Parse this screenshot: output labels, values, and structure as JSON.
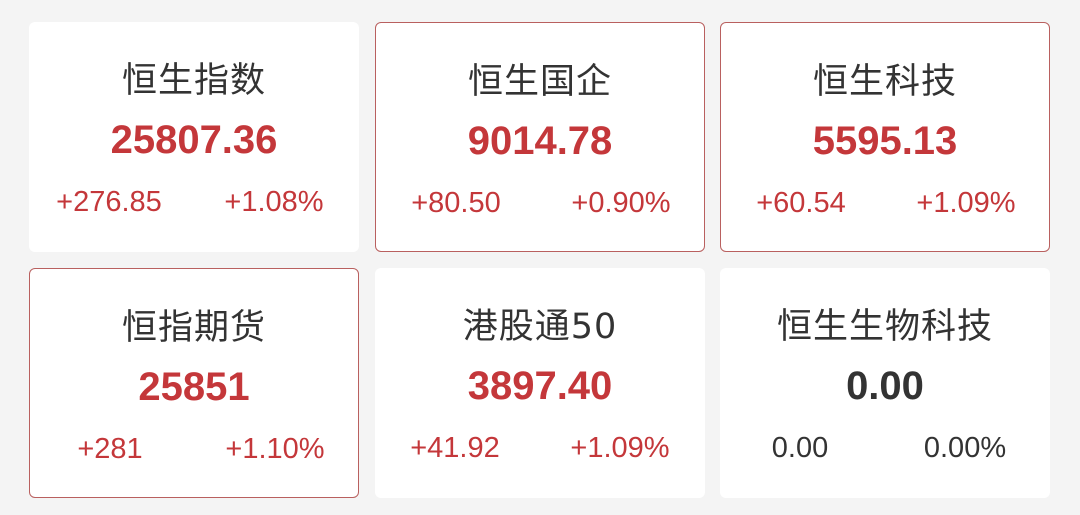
{
  "colors": {
    "up": "#c4373a",
    "flat": "#333333",
    "background": "#f4f4f4",
    "highlight_border": "#b9605f"
  },
  "cards": [
    {
      "name": "恒生指数",
      "value": "25807.36",
      "change": "+276.85",
      "percent": "+1.08%"
    },
    {
      "name": "恒生国企",
      "value": "9014.78",
      "change": "+80.50",
      "percent": "+0.90%"
    },
    {
      "name": "恒生科技",
      "value": "5595.13",
      "change": "+60.54",
      "percent": "+1.09%"
    },
    {
      "name": "恒指期货",
      "value": "25851",
      "change": "+281",
      "percent": "+1.10%"
    },
    {
      "name": "港股通50",
      "value": "3897.40",
      "change": "+41.92",
      "percent": "+1.09%"
    },
    {
      "name": "恒生生物科技",
      "value": "0.00",
      "change": "0.00",
      "percent": "0.00%"
    }
  ]
}
